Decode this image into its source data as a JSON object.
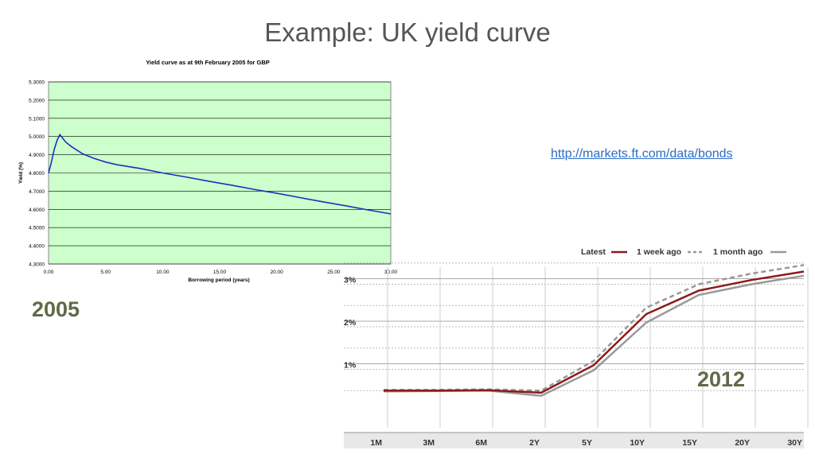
{
  "slide": {
    "title": "Example: UK yield curve",
    "link": "http://markets.ft.com/data/bonds",
    "label_2005": "2005",
    "label_2012": "2012"
  },
  "chart_data": [
    {
      "type": "line",
      "title": "Yield curve as at 9th February 2005 for GBP",
      "xlabel": "Borrowing period (years)",
      "ylabel": "Yield (%)",
      "xlim": [
        0,
        30
      ],
      "ylim": [
        4.3,
        5.3
      ],
      "x_ticks": [
        "0.00",
        "5.00",
        "10.00",
        "15.00",
        "20.00",
        "25.00",
        "30.00"
      ],
      "y_ticks": [
        "4.3000",
        "4.4000",
        "4.5000",
        "4.6000",
        "4.7000",
        "4.8000",
        "4.9000",
        "5.0000",
        "5.1000",
        "5.2000",
        "5.3000"
      ],
      "grid": "horizontal",
      "plot_background": "#ccffcc",
      "series": [
        {
          "color": "#1c2fc0",
          "x": [
            0,
            0.25,
            0.5,
            0.75,
            1.0,
            1.25,
            1.5,
            2,
            2.5,
            3,
            4,
            5,
            6,
            8,
            10,
            12,
            14,
            16,
            18,
            20,
            22,
            24,
            26,
            28,
            30
          ],
          "y": [
            4.8,
            4.86,
            4.93,
            4.98,
            5.01,
            4.99,
            4.97,
            4.945,
            4.925,
            4.905,
            4.88,
            4.86,
            4.845,
            4.825,
            4.8,
            4.778,
            4.755,
            4.733,
            4.71,
            4.688,
            4.665,
            4.642,
            4.62,
            4.597,
            4.575
          ]
        }
      ]
    },
    {
      "type": "line",
      "categories": [
        "1M",
        "3M",
        "6M",
        "2Y",
        "5Y",
        "10Y",
        "15Y",
        "20Y",
        "30Y"
      ],
      "y_ticks": [
        "1%",
        "2%",
        "3%"
      ],
      "ylim": [
        0,
        3.5
      ],
      "grid": "both",
      "legend_position": "top-right",
      "series": [
        {
          "name": "Latest",
          "color": "#8b1a1a",
          "dash": "solid",
          "values": [
            0.5,
            0.5,
            0.51,
            0.45,
            1.1,
            2.3,
            2.85,
            3.1,
            3.3
          ]
        },
        {
          "name": "1 week ago",
          "color": "#999999",
          "dash": "dashed",
          "values": [
            0.52,
            0.52,
            0.53,
            0.5,
            1.2,
            2.45,
            3.0,
            3.25,
            3.45
          ]
        },
        {
          "name": "1 month ago",
          "color": "#999999",
          "dash": "solid",
          "values": [
            0.48,
            0.49,
            0.5,
            0.38,
            0.98,
            2.1,
            2.75,
            3.0,
            3.2
          ]
        }
      ]
    }
  ]
}
